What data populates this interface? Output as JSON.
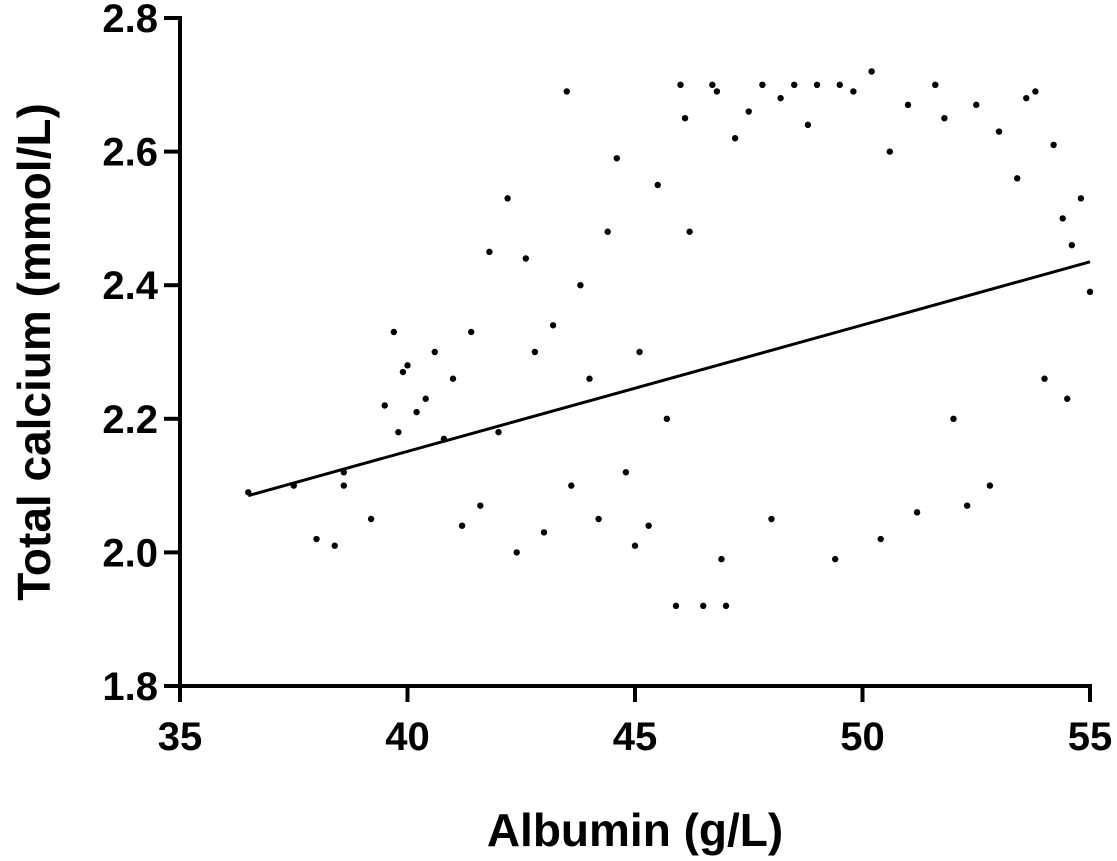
{
  "chart_data": {
    "type": "scatter",
    "title": "",
    "xlabel": "Albumin (g/L)",
    "ylabel": "Total calcium (mmol/L)",
    "xlim": [
      35,
      55
    ],
    "ylim": [
      1.8,
      2.8
    ],
    "x_ticks": [
      35,
      40,
      45,
      50,
      55
    ],
    "y_ticks": [
      1.8,
      2.0,
      2.2,
      2.4,
      2.6,
      2.8
    ],
    "x_tick_labels": [
      "35",
      "40",
      "45",
      "50",
      "55"
    ],
    "y_tick_labels": [
      "1.8",
      "2.0",
      "2.2",
      "2.4",
      "2.6",
      "2.8"
    ],
    "grid": false,
    "legend": "none",
    "point_color": "#000000",
    "series": [
      {
        "points": [
          [
            36.5,
            2.09
          ],
          [
            37.5,
            2.1
          ],
          [
            38.0,
            2.02
          ],
          [
            38.4,
            2.01
          ],
          [
            38.6,
            2.12
          ],
          [
            38.6,
            2.1
          ],
          [
            39.2,
            2.05
          ],
          [
            39.5,
            2.22
          ],
          [
            39.7,
            2.33
          ],
          [
            39.8,
            2.18
          ],
          [
            39.9,
            2.27
          ],
          [
            40.0,
            2.28
          ],
          [
            40.2,
            2.21
          ],
          [
            40.4,
            2.23
          ],
          [
            40.6,
            2.3
          ],
          [
            40.8,
            2.17
          ],
          [
            41.0,
            2.26
          ],
          [
            41.2,
            2.04
          ],
          [
            41.4,
            2.33
          ],
          [
            41.6,
            2.07
          ],
          [
            41.8,
            2.45
          ],
          [
            42.0,
            2.18
          ],
          [
            42.2,
            2.53
          ],
          [
            42.4,
            2.0
          ],
          [
            42.6,
            2.44
          ],
          [
            42.8,
            2.3
          ],
          [
            43.0,
            2.03
          ],
          [
            43.2,
            2.34
          ],
          [
            43.5,
            2.69
          ],
          [
            43.6,
            2.1
          ],
          [
            43.8,
            2.4
          ],
          [
            44.0,
            2.26
          ],
          [
            44.2,
            2.05
          ],
          [
            44.4,
            2.48
          ],
          [
            44.6,
            2.59
          ],
          [
            44.8,
            2.12
          ],
          [
            45.0,
            2.01
          ],
          [
            45.1,
            2.3
          ],
          [
            45.3,
            2.04
          ],
          [
            45.5,
            2.55
          ],
          [
            45.7,
            2.2
          ],
          [
            45.9,
            1.92
          ],
          [
            46.0,
            2.7
          ],
          [
            46.1,
            2.65
          ],
          [
            46.2,
            2.48
          ],
          [
            46.5,
            1.92
          ],
          [
            46.7,
            2.7
          ],
          [
            46.8,
            2.69
          ],
          [
            46.9,
            1.99
          ],
          [
            47.0,
            1.92
          ],
          [
            47.2,
            2.62
          ],
          [
            47.5,
            2.66
          ],
          [
            47.8,
            2.7
          ],
          [
            48.0,
            2.05
          ],
          [
            48.2,
            2.68
          ],
          [
            48.5,
            2.7
          ],
          [
            48.8,
            2.64
          ],
          [
            49.0,
            2.7
          ],
          [
            49.4,
            1.99
          ],
          [
            49.5,
            2.7
          ],
          [
            49.8,
            2.69
          ],
          [
            50.2,
            2.72
          ],
          [
            50.4,
            2.02
          ],
          [
            50.6,
            2.6
          ],
          [
            51.0,
            2.67
          ],
          [
            51.2,
            2.06
          ],
          [
            51.6,
            2.7
          ],
          [
            51.8,
            2.65
          ],
          [
            52.0,
            2.2
          ],
          [
            52.3,
            2.07
          ],
          [
            52.5,
            2.67
          ],
          [
            52.8,
            2.1
          ],
          [
            53.0,
            2.63
          ],
          [
            53.4,
            2.56
          ],
          [
            53.6,
            2.68
          ],
          [
            53.8,
            2.69
          ],
          [
            54.0,
            2.26
          ],
          [
            54.2,
            2.61
          ],
          [
            54.4,
            2.5
          ],
          [
            54.5,
            2.23
          ],
          [
            54.6,
            2.46
          ],
          [
            54.8,
            2.53
          ],
          [
            55.0,
            2.39
          ]
        ]
      }
    ],
    "trend_line": {
      "x": [
        36.5,
        55.0
      ],
      "y": [
        2.085,
        2.435
      ]
    }
  }
}
